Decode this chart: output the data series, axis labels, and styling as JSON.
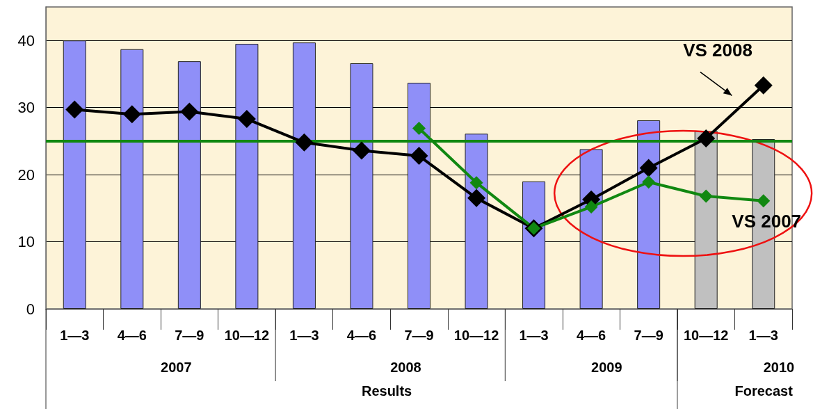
{
  "chart_data": {
    "type": "bar",
    "categories": [
      "1―3",
      "4―6",
      "7―9",
      "10―12",
      "1―3",
      "4―6",
      "7―9",
      "10―12",
      "1―3",
      "4―6",
      "7―9",
      "10―12",
      "1―3"
    ],
    "series": [
      {
        "colors": [
          "#8f8ff8",
          "#8f8ff8",
          "#8f8ff8",
          "#8f8ff8",
          "#8f8ff8",
          "#8f8ff8",
          "#8f8ff8",
          "#8f8ff8",
          "#8f8ff8",
          "#8f8ff8",
          "#8f8ff8",
          "#c0c0c0",
          "#c0c0c0"
        ],
        "values": [
          40.0,
          38.7,
          36.9,
          39.5,
          39.7,
          36.6,
          33.7,
          26.1,
          19.0,
          23.8,
          28.1,
          26.5,
          25.3
        ]
      },
      {
        "type": "line",
        "name": "VS 2008",
        "color": "#000000",
        "values": [
          29.7,
          29.0,
          29.4,
          28.3,
          24.8,
          23.6,
          22.8,
          16.5,
          12.0,
          16.3,
          21.0,
          25.4,
          33.3
        ]
      },
      {
        "type": "line",
        "name": "VS 2007",
        "color": "#118811",
        "values": [
          null,
          null,
          null,
          null,
          null,
          null,
          26.9,
          18.8,
          12.0,
          15.2,
          18.9,
          16.8,
          16.1
        ]
      }
    ],
    "ylim": [
      0,
      45
    ],
    "yticks": [
      0,
      10,
      20,
      30,
      40
    ],
    "grid": "y",
    "marker": "diamond",
    "line_style": "solid",
    "legend": false,
    "ref_lines": [
      {
        "axis": "y",
        "value": 25,
        "color": "#118811"
      }
    ],
    "annotations": [
      "2007",
      "2008",
      "2009",
      "2010",
      "Results",
      "Forecast"
    ]
  }
}
